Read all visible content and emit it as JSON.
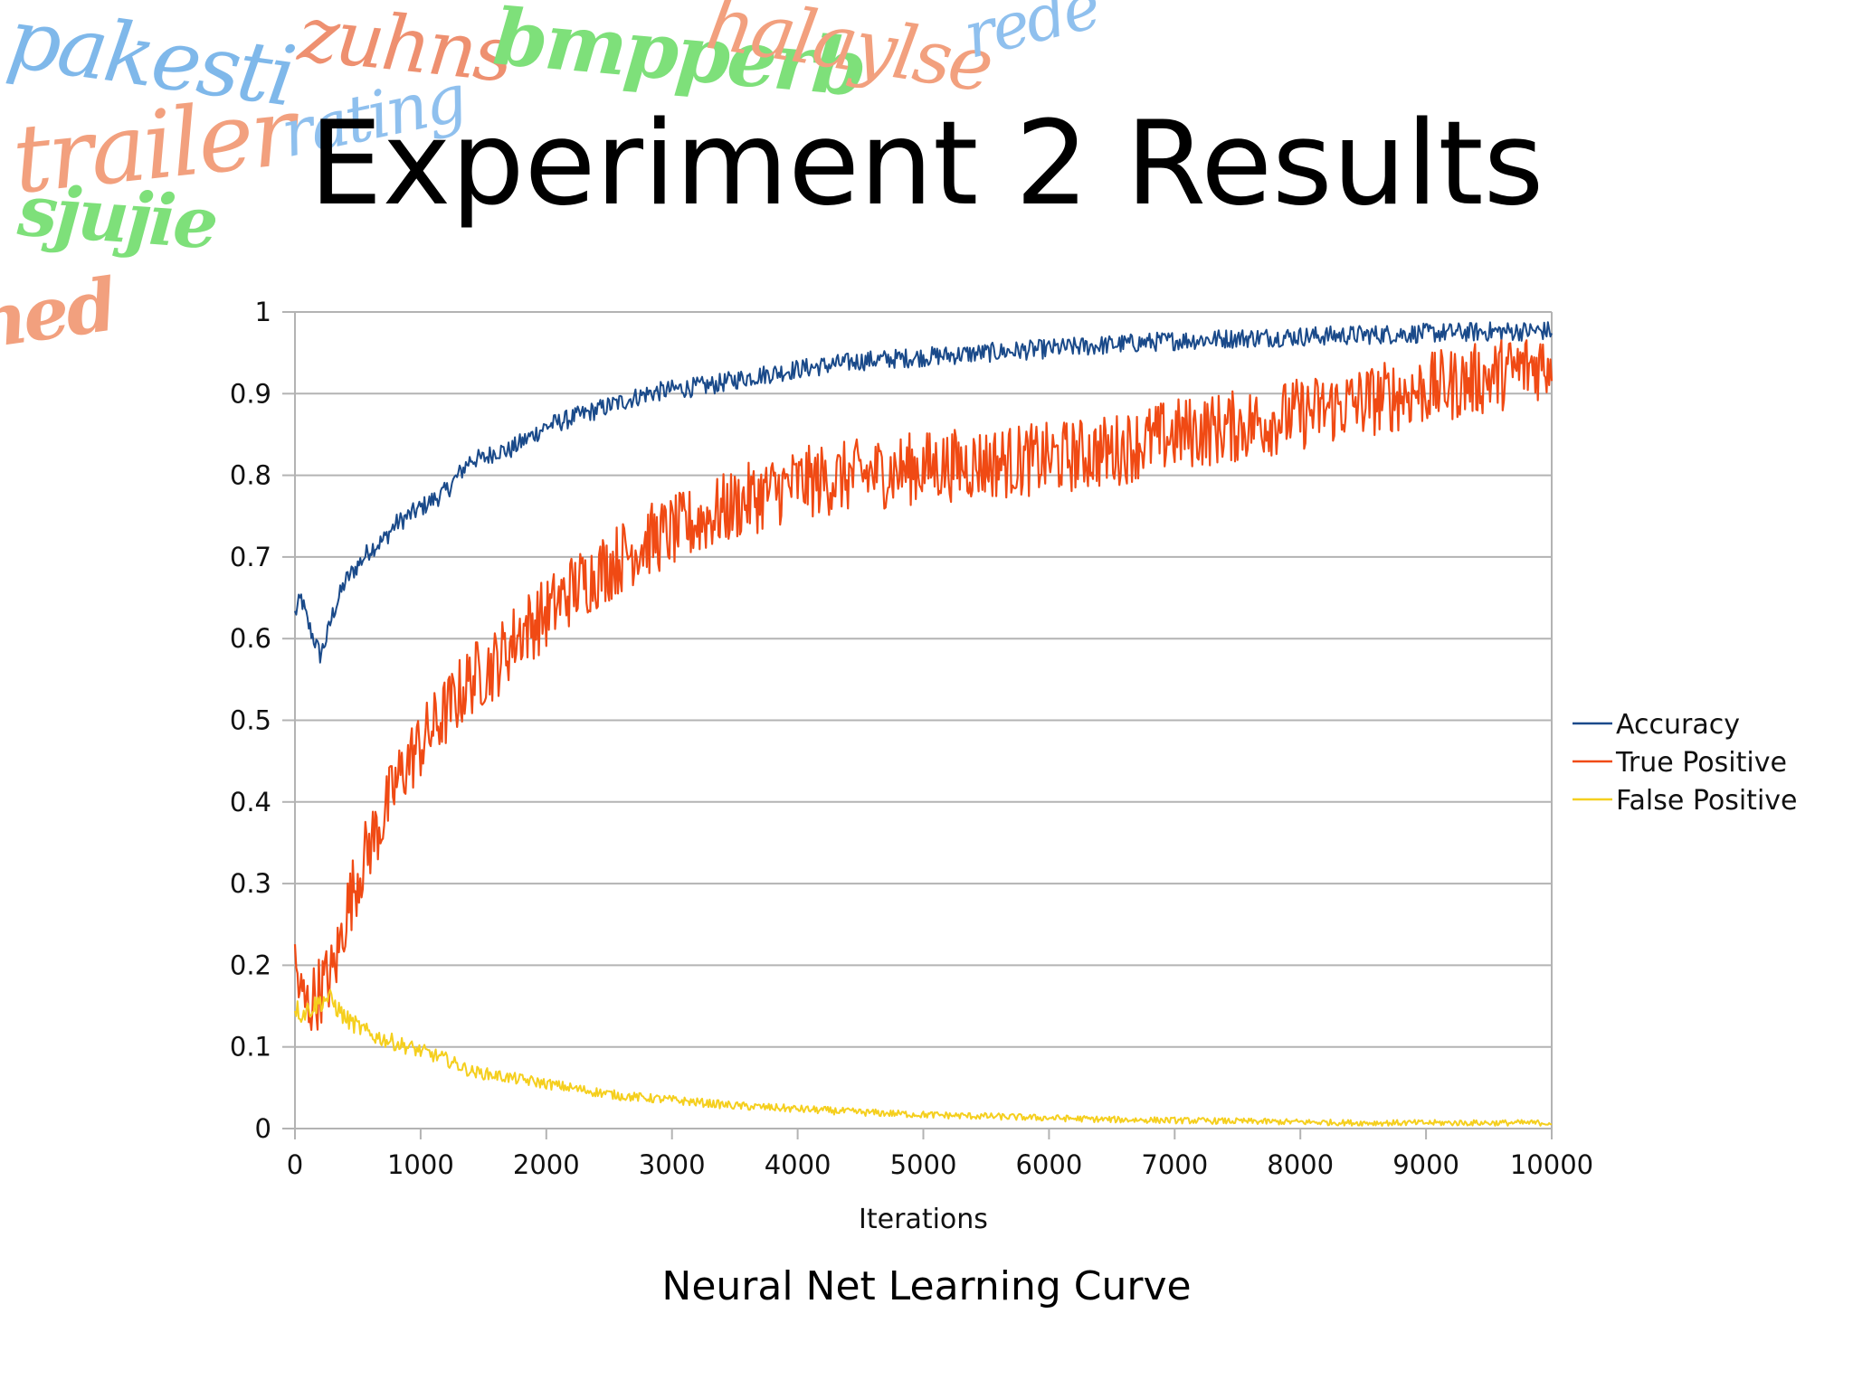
{
  "slide": {
    "title": "Experiment 2 Results",
    "caption": "Neural Net Learning Curve"
  },
  "background_words": [
    {
      "text": "pakesti",
      "color": "#7fb8ea"
    },
    {
      "text": "zuhns",
      "color": "#ee9070"
    },
    {
      "text": "bmpperb",
      "color": "#7ee07a"
    },
    {
      "text": "halaylse",
      "color": "#f2a07e"
    },
    {
      "text": "rede",
      "color": "#8fc0ee"
    },
    {
      "text": "trailer",
      "color": "#f2a07e"
    },
    {
      "text": "rating",
      "color": "#8fc0ee"
    },
    {
      "text": "sjujie",
      "color": "#7ee07a"
    },
    {
      "text": "ned",
      "color": "#f2a07e"
    }
  ],
  "chart_data": {
    "type": "line",
    "title": "",
    "xlabel": "Iterations",
    "ylabel": "",
    "xlim": [
      0,
      10000
    ],
    "ylim": [
      0,
      1
    ],
    "x_ticks": [
      "0",
      "1000",
      "2000",
      "3000",
      "4000",
      "5000",
      "6000",
      "7000",
      "8000",
      "9000",
      "10000"
    ],
    "y_ticks": [
      "0",
      "0.1",
      "0.2",
      "0.3",
      "0.4",
      "0.5",
      "0.6",
      "0.7",
      "0.8",
      "0.9",
      "1"
    ],
    "grid": "horizontal",
    "legend_position": "right",
    "series": [
      {
        "name": "Accuracy",
        "color": "#1a4a8a",
        "x": [
          0,
          50,
          100,
          150,
          200,
          250,
          300,
          400,
          500,
          600,
          700,
          800,
          900,
          1000,
          1100,
          1200,
          1300,
          1400,
          1500,
          1600,
          1700,
          1800,
          1900,
          2000,
          2200,
          2400,
          2600,
          2800,
          3000,
          3300,
          3600,
          4000,
          4500,
          5000,
          5500,
          6000,
          6500,
          7000,
          7500,
          8000,
          8500,
          9000,
          9500,
          10000
        ],
        "values": [
          0.63,
          0.65,
          0.62,
          0.6,
          0.58,
          0.6,
          0.63,
          0.67,
          0.69,
          0.71,
          0.72,
          0.74,
          0.75,
          0.76,
          0.77,
          0.78,
          0.8,
          0.82,
          0.82,
          0.83,
          0.83,
          0.84,
          0.85,
          0.86,
          0.87,
          0.88,
          0.89,
          0.9,
          0.905,
          0.91,
          0.92,
          0.93,
          0.94,
          0.945,
          0.95,
          0.955,
          0.96,
          0.965,
          0.968,
          0.97,
          0.972,
          0.974,
          0.976,
          0.977
        ]
      },
      {
        "name": "True Positive",
        "color": "#f04a14",
        "x": [
          0,
          50,
          100,
          150,
          200,
          250,
          300,
          350,
          400,
          500,
          600,
          700,
          800,
          900,
          1000,
          1100,
          1200,
          1300,
          1400,
          1500,
          1600,
          1700,
          1800,
          1900,
          2000,
          2200,
          2400,
          2600,
          2800,
          3000,
          3300,
          3600,
          4000,
          4500,
          5000,
          5500,
          6000,
          6500,
          7000,
          7500,
          8000,
          8500,
          9000,
          9500,
          10000
        ],
        "values": [
          0.2,
          0.16,
          0.15,
          0.16,
          0.17,
          0.18,
          0.19,
          0.22,
          0.26,
          0.31,
          0.35,
          0.38,
          0.42,
          0.45,
          0.47,
          0.49,
          0.51,
          0.53,
          0.55,
          0.56,
          0.57,
          0.59,
          0.61,
          0.62,
          0.63,
          0.66,
          0.68,
          0.7,
          0.72,
          0.73,
          0.75,
          0.77,
          0.79,
          0.8,
          0.81,
          0.815,
          0.82,
          0.83,
          0.85,
          0.86,
          0.875,
          0.89,
          0.905,
          0.92,
          0.94
        ]
      },
      {
        "name": "False Positive",
        "color": "#f5cf1e",
        "x": [
          0,
          50,
          100,
          150,
          200,
          250,
          300,
          350,
          400,
          500,
          600,
          800,
          1000,
          1200,
          1400,
          1600,
          1800,
          2000,
          2300,
          2600,
          3000,
          3500,
          4000,
          4500,
          5000,
          5500,
          6000,
          6500,
          7000,
          7500,
          8000,
          8500,
          9000,
          9500,
          10000
        ],
        "values": [
          0.15,
          0.14,
          0.145,
          0.15,
          0.155,
          0.16,
          0.155,
          0.145,
          0.135,
          0.125,
          0.115,
          0.105,
          0.095,
          0.085,
          0.07,
          0.065,
          0.06,
          0.055,
          0.047,
          0.04,
          0.035,
          0.028,
          0.024,
          0.02,
          0.017,
          0.015,
          0.013,
          0.011,
          0.01,
          0.009,
          0.008,
          0.007,
          0.007,
          0.007,
          0.007
        ]
      }
    ]
  }
}
